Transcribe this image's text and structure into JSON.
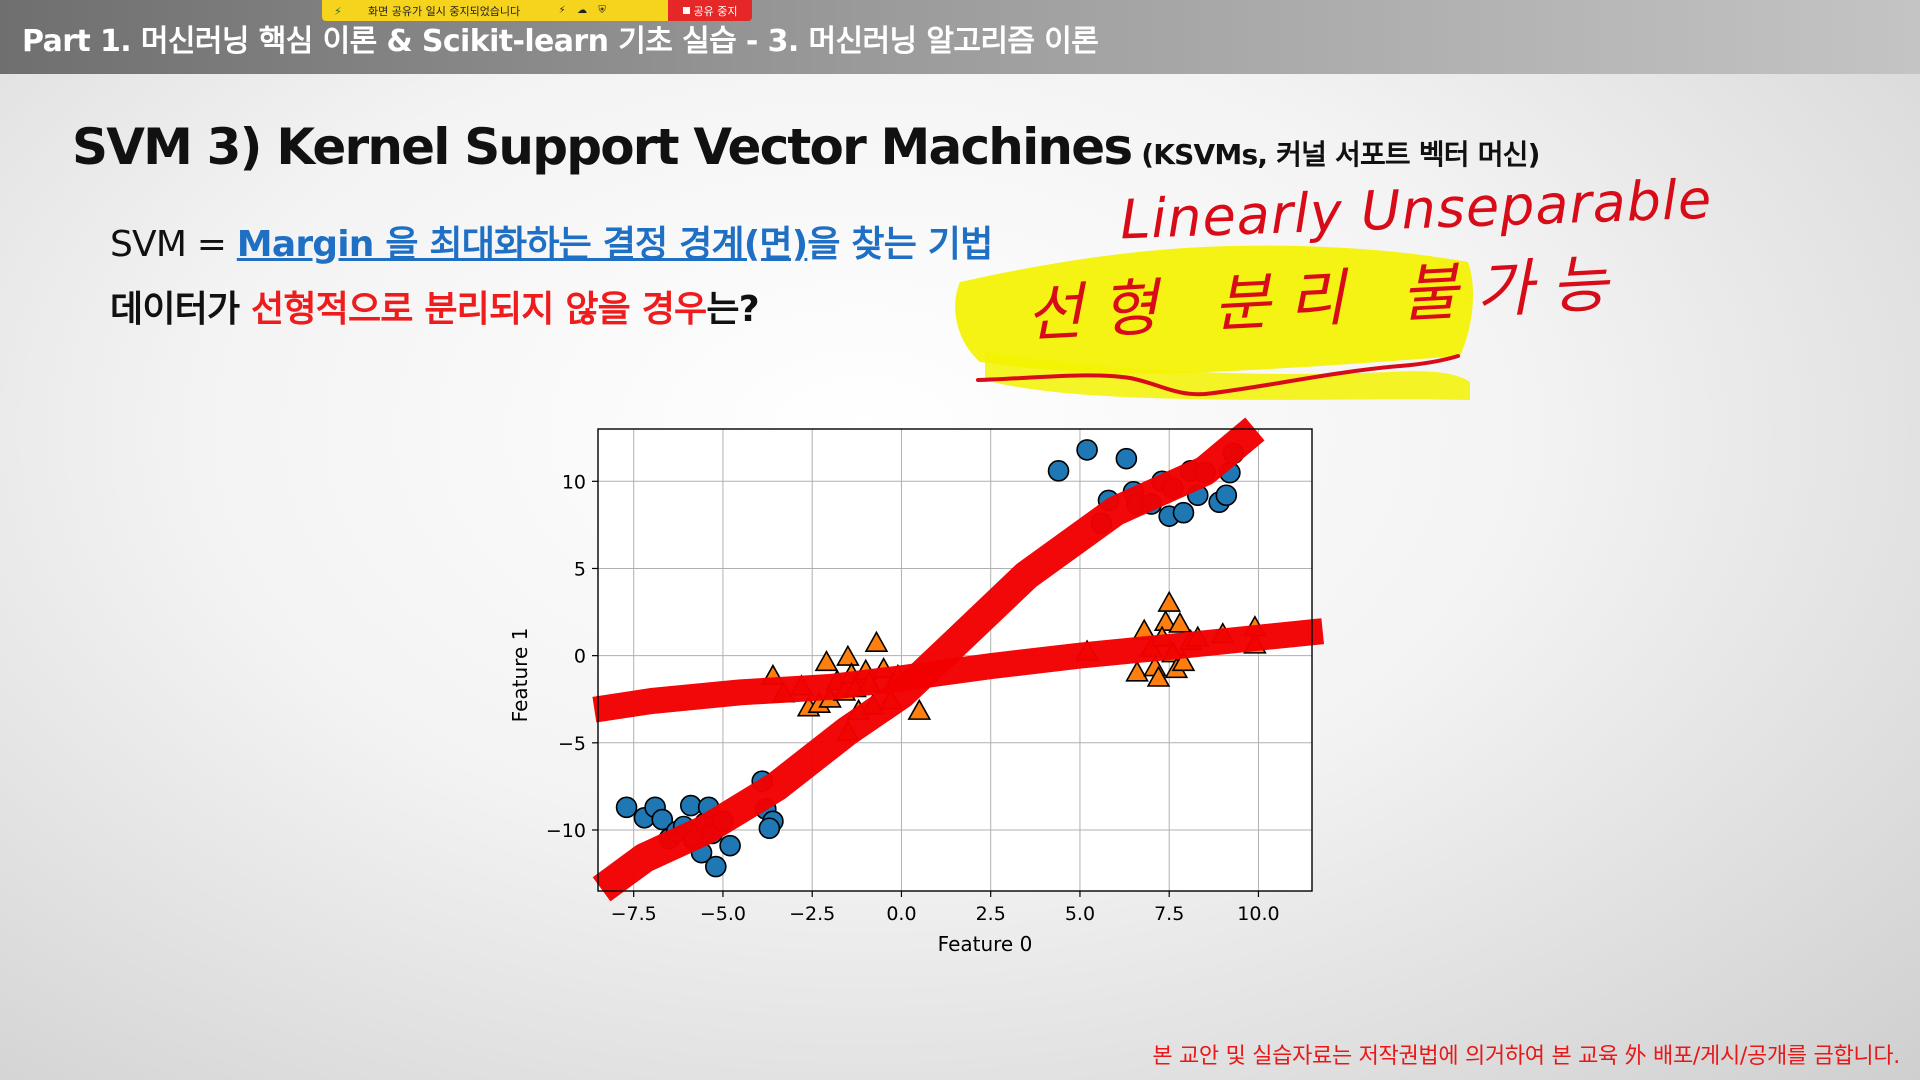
{
  "header": {
    "title": "Part 1. 머신러닝 핵심 이론 & Scikit-learn 기초 실습 - 3. 머신러닝 알고리즘 이론"
  },
  "share_bar": {
    "message": "화면 공유가 일시 중지되었습니다",
    "stop_label": "공유 중지",
    "icons": [
      "bolt-icon",
      "cloud-icon",
      "shield-icon"
    ]
  },
  "slide": {
    "title_main": "SVM 3) Kernel Support Vector Machines",
    "title_sub": "(KSVMs, 커널 서포트 벡터 머신)",
    "line1_prefix": "SVM = ",
    "line1_link": "Margin 을 최대화하는 결정 경계(면)",
    "line1_suffix": "을 찾는 기법",
    "line2_a": "데이터가 ",
    "line2_red": "선형적으로 분리되지 않을 경우",
    "line2_b": "는?",
    "footer": "본 교안 및 실습자료는 저작권법에 의거하여 본 교육 外 배포/게시/공개를 금합니다."
  },
  "annotation": {
    "english": "Linearly Unseparable",
    "korean": "선형 분리 불가능",
    "highlight_color": "#f3f200",
    "ink_color": "#d80c18"
  },
  "chart_data": {
    "type": "scatter",
    "xlabel": "Feature 0",
    "ylabel": "Feature 1",
    "xlim": [
      -8.5,
      11.5
    ],
    "ylim": [
      -13.5,
      13
    ],
    "xticks": [
      -7.5,
      -5.0,
      -2.5,
      0.0,
      2.5,
      5.0,
      7.5,
      10.0
    ],
    "xtick_labels": [
      "−7.5",
      "−5.0",
      "−2.5",
      "0.0",
      "2.5",
      "5.0",
      "7.5",
      "10.0"
    ],
    "yticks": [
      -10,
      -5,
      0,
      5,
      10
    ],
    "ytick_labels": [
      "−10",
      "−5",
      "0",
      "5",
      "10"
    ],
    "grid": true,
    "series": [
      {
        "marker": "circle",
        "color": "#1f77b4",
        "points": [
          [
            -7.7,
            -8.7
          ],
          [
            -7.2,
            -9.3
          ],
          [
            -6.9,
            -8.7
          ],
          [
            -6.7,
            -9.4
          ],
          [
            -6.5,
            -10.5
          ],
          [
            -6.3,
            -10.1
          ],
          [
            -6.1,
            -9.8
          ],
          [
            -5.9,
            -8.6
          ],
          [
            -5.8,
            -10.6
          ],
          [
            -5.6,
            -11.3
          ],
          [
            -5.5,
            -9.6
          ],
          [
            -5.4,
            -8.7
          ],
          [
            -5.3,
            -10.2
          ],
          [
            -5.2,
            -12.1
          ],
          [
            -5.0,
            -9.5
          ],
          [
            -4.8,
            -10.9
          ],
          [
            -3.9,
            -7.2
          ],
          [
            -3.8,
            -8.8
          ],
          [
            -3.6,
            -9.5
          ],
          [
            -3.7,
            -9.9
          ],
          [
            4.4,
            10.6
          ],
          [
            5.2,
            11.8
          ],
          [
            5.6,
            7.6
          ],
          [
            5.8,
            8.9
          ],
          [
            6.3,
            11.3
          ],
          [
            6.5,
            9.4
          ],
          [
            6.6,
            8.7
          ],
          [
            7.0,
            8.7
          ],
          [
            7.3,
            10.0
          ],
          [
            7.5,
            8.0
          ],
          [
            7.6,
            9.6
          ],
          [
            7.9,
            8.2
          ],
          [
            8.1,
            10.6
          ],
          [
            8.3,
            9.2
          ],
          [
            8.5,
            10.5
          ],
          [
            8.9,
            8.8
          ],
          [
            9.1,
            9.2
          ],
          [
            9.2,
            10.5
          ],
          [
            9.3,
            11.6
          ]
        ]
      },
      {
        "marker": "triangle",
        "color": "#ff7f0e",
        "points": [
          [
            -3.6,
            -1.2
          ],
          [
            -3.3,
            -2.2
          ],
          [
            -2.8,
            -1.8
          ],
          [
            -2.6,
            -3.0
          ],
          [
            -2.3,
            -2.8
          ],
          [
            -2.1,
            -0.4
          ],
          [
            -2.0,
            -2.5
          ],
          [
            -1.8,
            -1.5
          ],
          [
            -1.6,
            -2.1
          ],
          [
            -1.5,
            -0.1
          ],
          [
            -1.4,
            -1.1
          ],
          [
            -1.3,
            -1.9
          ],
          [
            -1.2,
            -3.2
          ],
          [
            -1.0,
            -0.9
          ],
          [
            -0.9,
            -1.6
          ],
          [
            -0.8,
            -2.9
          ],
          [
            -0.7,
            0.7
          ],
          [
            -0.5,
            -0.8
          ],
          [
            -0.3,
            -2.6
          ],
          [
            -0.1,
            -1.2
          ],
          [
            0.5,
            -3.2
          ],
          [
            -1.5,
            -4.4
          ],
          [
            5.2,
            0.2
          ],
          [
            6.6,
            -1.0
          ],
          [
            6.8,
            1.4
          ],
          [
            7.0,
            0.4
          ],
          [
            7.1,
            -0.7
          ],
          [
            7.2,
            -1.3
          ],
          [
            7.4,
            1.9
          ],
          [
            7.5,
            3.0
          ],
          [
            7.6,
            0.1
          ],
          [
            7.7,
            -0.8
          ],
          [
            7.8,
            1.8
          ],
          [
            7.9,
            -0.4
          ],
          [
            8.1,
            0.8
          ],
          [
            8.3,
            1.0
          ],
          [
            9.0,
            1.2
          ],
          [
            9.9,
            1.6
          ],
          [
            9.9,
            0.6
          ],
          [
            7.3,
            1.0
          ]
        ]
      }
    ],
    "decision_curves": [
      [
        [
          -8.6,
          -3.1
        ],
        [
          -7.0,
          -2.6
        ],
        [
          -4.5,
          -2.1
        ],
        [
          -2.0,
          -1.8
        ],
        [
          0.0,
          -1.3
        ],
        [
          2.5,
          -0.6
        ],
        [
          5.0,
          0.0
        ],
        [
          7.5,
          0.5
        ],
        [
          11.8,
          1.4
        ]
      ],
      [
        [
          -8.4,
          -13.4
        ],
        [
          -7.2,
          -11.6
        ],
        [
          -5.5,
          -10.0
        ],
        [
          -3.5,
          -7.5
        ],
        [
          -1.5,
          -4.3
        ],
        [
          0.0,
          -2.2
        ],
        [
          1.5,
          0.7
        ],
        [
          3.5,
          4.6
        ],
        [
          6.0,
          8.3
        ],
        [
          8.5,
          10.6
        ],
        [
          9.9,
          13.0
        ]
      ]
    ]
  }
}
